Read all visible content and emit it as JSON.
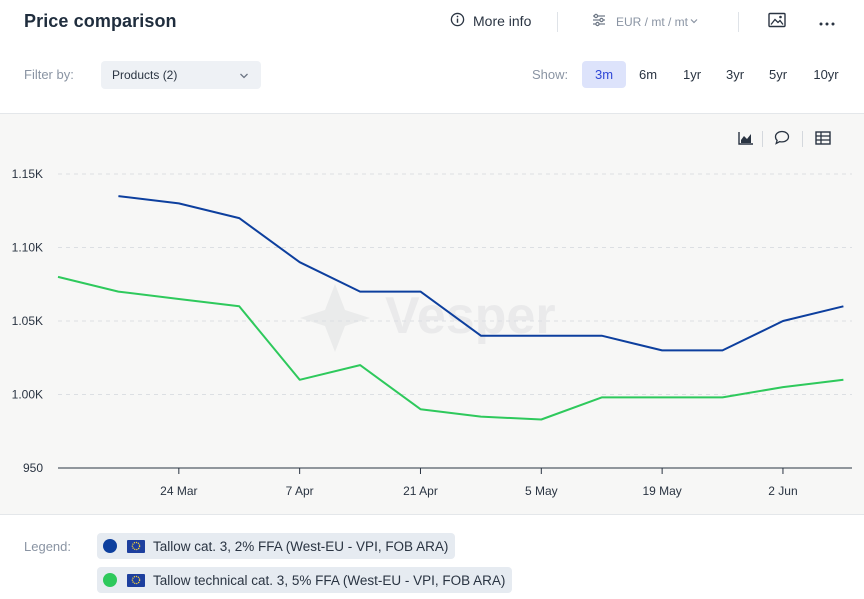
{
  "header": {
    "title": "Price comparison",
    "more_info_label": "More info",
    "unit_label": "EUR / mt / mt"
  },
  "filters": {
    "filter_label": "Filter by:",
    "products_value": "Products (2)",
    "show_label": "Show:",
    "ranges": [
      "3m",
      "6m",
      "1yr",
      "3yr",
      "5yr",
      "10yr"
    ],
    "active_range": "3m"
  },
  "watermark": "Vesper",
  "colors": {
    "series_blue": "#0d3f9e",
    "series_green": "#2ec95c",
    "active_range_bg": "#dde3fb",
    "active_range_text": "#2f47d6"
  },
  "chart_data": {
    "type": "line",
    "x_range": [
      "2025-03-10",
      "2025-06-10"
    ],
    "y_range": [
      950,
      1150
    ],
    "y_ticks": [
      950,
      1000,
      1050,
      1100,
      1150
    ],
    "y_tick_labels": [
      "950",
      "1.00K",
      "1.05K",
      "1.10K",
      "1.15K"
    ],
    "x_ticks": [
      "2025-03-24",
      "2025-04-07",
      "2025-04-21",
      "2025-05-05",
      "2025-05-19",
      "2025-06-02"
    ],
    "x_tick_labels": [
      "24 Mar",
      "7 Apr",
      "21 Apr",
      "5 May",
      "19 May",
      "2 Jun"
    ],
    "grid": "horizontal dashed",
    "series": [
      {
        "name": "Tallow cat. 3, 2% FFA (West-EU - VPI, FOB ARA)",
        "color": "#0d3f9e",
        "points": [
          [
            "2025-03-17",
            1135
          ],
          [
            "2025-03-24",
            1130
          ],
          [
            "2025-03-31",
            1120
          ],
          [
            "2025-04-07",
            1090
          ],
          [
            "2025-04-14",
            1070
          ],
          [
            "2025-04-21",
            1070
          ],
          [
            "2025-04-28",
            1040
          ],
          [
            "2025-05-05",
            1040
          ],
          [
            "2025-05-12",
            1040
          ],
          [
            "2025-05-19",
            1030
          ],
          [
            "2025-05-26",
            1030
          ],
          [
            "2025-06-02",
            1050
          ],
          [
            "2025-06-09",
            1060
          ]
        ]
      },
      {
        "name": "Tallow technical cat. 3, 5% FFA (West-EU - VPI, FOB ARA)",
        "color": "#2ec95c",
        "points": [
          [
            "2025-03-10",
            1080
          ],
          [
            "2025-03-17",
            1070
          ],
          [
            "2025-03-24",
            1065
          ],
          [
            "2025-03-31",
            1060
          ],
          [
            "2025-04-07",
            1010
          ],
          [
            "2025-04-14",
            1020
          ],
          [
            "2025-04-21",
            990
          ],
          [
            "2025-04-28",
            985
          ],
          [
            "2025-05-05",
            983
          ],
          [
            "2025-05-12",
            998
          ],
          [
            "2025-05-19",
            998
          ],
          [
            "2025-05-26",
            998
          ],
          [
            "2025-06-02",
            1005
          ],
          [
            "2025-06-09",
            1010
          ]
        ]
      }
    ]
  },
  "legend": {
    "label": "Legend:",
    "items": [
      {
        "text": "Tallow cat. 3, 2% FFA (West-EU - VPI, FOB ARA)",
        "color": "#0d3f9e"
      },
      {
        "text": "Tallow technical cat. 3, 5% FFA (West-EU - VPI, FOB ARA)",
        "color": "#2ec95c"
      }
    ]
  }
}
